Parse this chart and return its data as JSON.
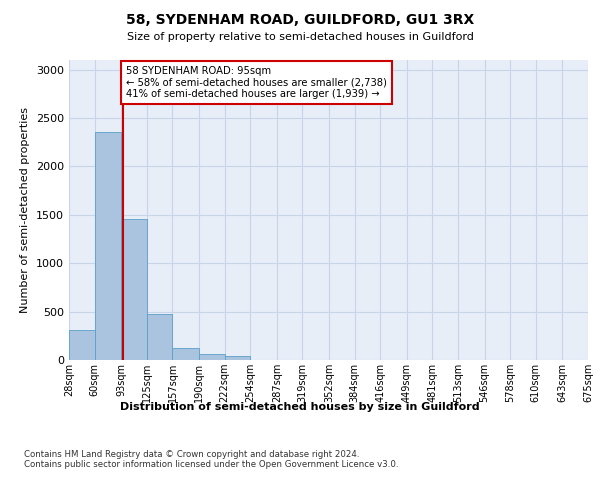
{
  "title_line1": "58, SYDENHAM ROAD, GUILDFORD, GU1 3RX",
  "title_line2": "Size of property relative to semi-detached houses in Guildford",
  "xlabel": "Distribution of semi-detached houses by size in Guildford",
  "ylabel": "Number of semi-detached properties",
  "footnote": "Contains HM Land Registry data © Crown copyright and database right 2024.\nContains public sector information licensed under the Open Government Licence v3.0.",
  "bar_edges": [
    28,
    60,
    93,
    125,
    157,
    190,
    222,
    254,
    287,
    319,
    352,
    384,
    416,
    449,
    481,
    513,
    546,
    578,
    610,
    643,
    675
  ],
  "bar_heights": [
    310,
    2360,
    1460,
    475,
    125,
    60,
    42,
    0,
    0,
    0,
    0,
    0,
    0,
    0,
    0,
    0,
    0,
    0,
    0,
    0
  ],
  "bar_color": "#aac4e0",
  "bar_edge_color": "#5a9fc8",
  "property_size": 95,
  "red_line_color": "#cc0000",
  "annotation_text": "58 SYDENHAM ROAD: 95sqm\n← 58% of semi-detached houses are smaller (2,738)\n41% of semi-detached houses are larger (1,939) →",
  "annotation_box_color": "white",
  "annotation_box_edge_color": "#cc0000",
  "ylim": [
    0,
    3100
  ],
  "yticks": [
    0,
    500,
    1000,
    1500,
    2000,
    2500,
    3000
  ],
  "grid_color": "#c8d4e8",
  "axes_background": "#e8eef8",
  "tick_labels": [
    "28sqm",
    "60sqm",
    "93sqm",
    "125sqm",
    "157sqm",
    "190sqm",
    "222sqm",
    "254sqm",
    "287sqm",
    "319sqm",
    "352sqm",
    "384sqm",
    "416sqm",
    "449sqm",
    "481sqm",
    "513sqm",
    "546sqm",
    "578sqm",
    "610sqm",
    "643sqm",
    "675sqm"
  ]
}
